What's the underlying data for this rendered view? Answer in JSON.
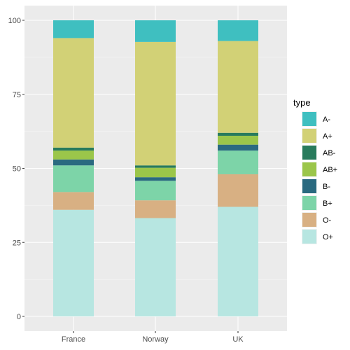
{
  "chart_data": {
    "type": "bar",
    "stacked": true,
    "categories": [
      "France",
      "Norway",
      "UK"
    ],
    "series": [
      {
        "name": "O+",
        "color": "#b7e6e1",
        "values": [
          36,
          33.2,
          37
        ]
      },
      {
        "name": "O-",
        "color": "#d8b083",
        "values": [
          6,
          6,
          11
        ]
      },
      {
        "name": "B+",
        "color": "#7dd4a8",
        "values": [
          9,
          6.6,
          8
        ]
      },
      {
        "name": "B-",
        "color": "#2a6a80",
        "values": [
          2,
          1.2,
          2
        ]
      },
      {
        "name": "AB+",
        "color": "#9bc64a",
        "values": [
          3,
          3.2,
          3
        ]
      },
      {
        "name": "AB-",
        "color": "#287b5c",
        "values": [
          1,
          0.8,
          1
        ]
      },
      {
        "name": "A+",
        "color": "#d2d176",
        "values": [
          37,
          41.7,
          31
        ]
      },
      {
        "name": "A-",
        "color": "#3fbfc0",
        "values": [
          6,
          7.3,
          7
        ]
      }
    ],
    "yticks": [
      0,
      25,
      50,
      75,
      100
    ],
    "ylim": [
      0,
      100
    ],
    "xlabel": "",
    "ylabel": "",
    "title": "",
    "grid": true,
    "legend": {
      "title": "type",
      "placement": "right",
      "order": [
        "A-",
        "A+",
        "AB-",
        "AB+",
        "B-",
        "B+",
        "O-",
        "O+"
      ]
    }
  },
  "colors": {
    "panel_background": "#ebebeb",
    "grid_major": "#ffffff"
  }
}
